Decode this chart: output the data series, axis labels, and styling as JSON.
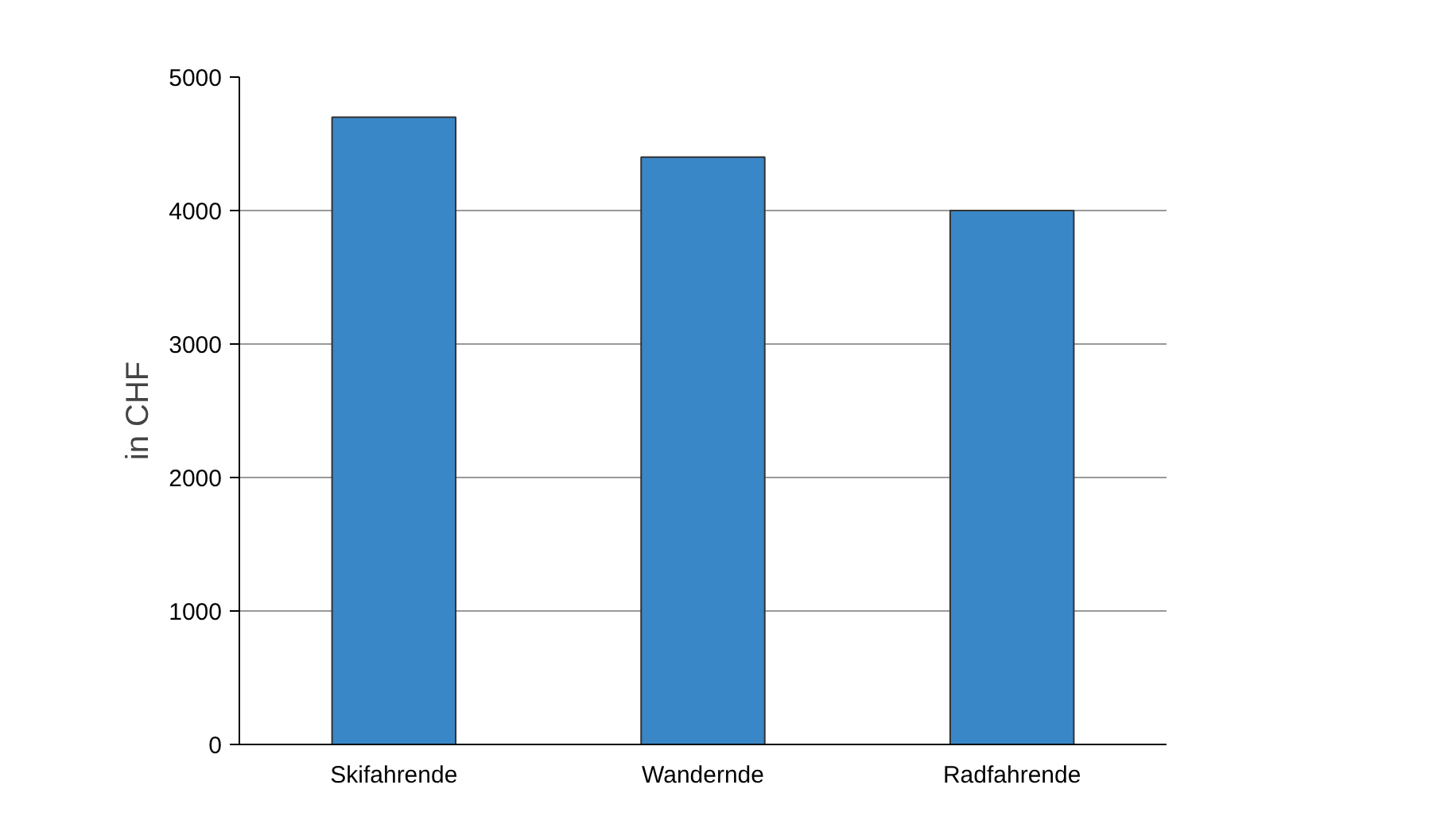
{
  "chart_data": {
    "type": "bar",
    "ylabel": "in CHF",
    "categories": [
      "Skifahrende",
      "Wandernde",
      "Radfahrende"
    ],
    "values": [
      4700,
      4400,
      4000
    ],
    "color": "#3a87c8",
    "ylim": [
      0,
      5000
    ],
    "yticks": [
      0,
      1000,
      2000,
      3000,
      4000,
      5000
    ],
    "grid": "y"
  }
}
